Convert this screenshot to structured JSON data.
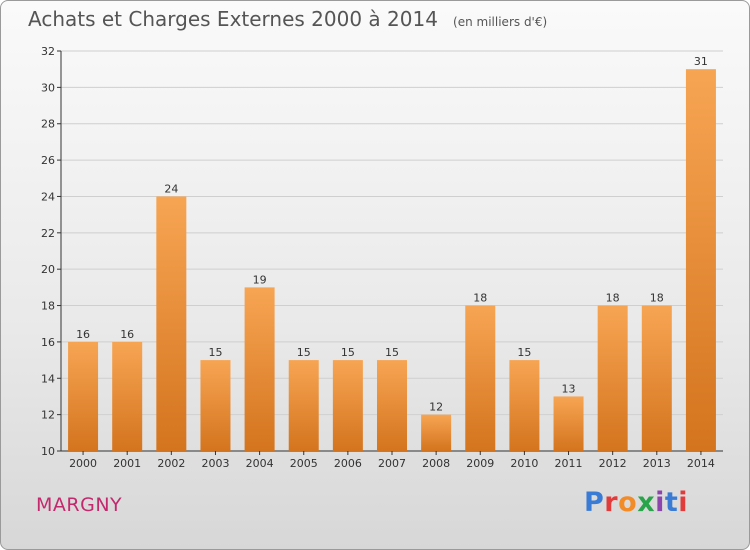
{
  "header": {
    "title": "Achats et Charges Externes 2000 à 2014",
    "subtitle": "(en milliers d'€)"
  },
  "footer": {
    "place": "MARGNY",
    "brand": "Proxiti",
    "brand_colors": [
      "#3a7bd5",
      "#e23b3b",
      "#f28c28",
      "#2aa44a",
      "#8e44ad",
      "#3a7bd5",
      "#e23b3b"
    ]
  },
  "colors": {
    "bar_top": "#f7a553",
    "bar_bottom": "#d4741e",
    "grid": "#cfcfcf",
    "axis": "#333333",
    "text": "#333333"
  },
  "chart_data": {
    "type": "bar",
    "categories": [
      "2000",
      "2001",
      "2002",
      "2003",
      "2004",
      "2005",
      "2006",
      "2007",
      "2008",
      "2009",
      "2010",
      "2011",
      "2012",
      "2013",
      "2014"
    ],
    "values": [
      16,
      16,
      24,
      15,
      19,
      15,
      15,
      15,
      12,
      18,
      15,
      13,
      18,
      18,
      31
    ],
    "ylim": [
      10,
      32
    ],
    "yticks": [
      10,
      12,
      14,
      16,
      18,
      20,
      22,
      24,
      26,
      28,
      30,
      32
    ],
    "grid": true,
    "data_labels": true
  }
}
